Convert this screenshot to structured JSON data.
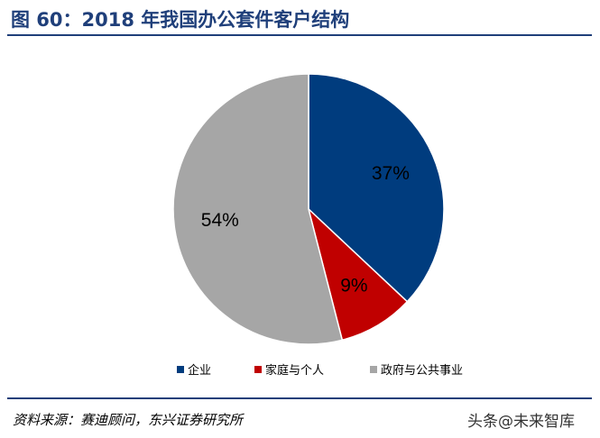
{
  "figure": {
    "title": "图 60：2018 年我国办公套件客户结构",
    "source": "资料来源：赛迪顾问，东兴证券研究所",
    "watermark": "头条@未来智库"
  },
  "chart_data": {
    "type": "pie",
    "title": "",
    "legend_position": "bottom",
    "start_angle": "12 o'clock, clockwise",
    "slices": [
      {
        "name": "企业",
        "value": 37,
        "label": "37%",
        "color": "#003c7e"
      },
      {
        "name": "家庭与个人",
        "value": 9,
        "label": "9%",
        "color": "#c00000"
      },
      {
        "name": "政府与公共事业",
        "value": 54,
        "label": "54%",
        "color": "#a6a6a6"
      }
    ]
  }
}
